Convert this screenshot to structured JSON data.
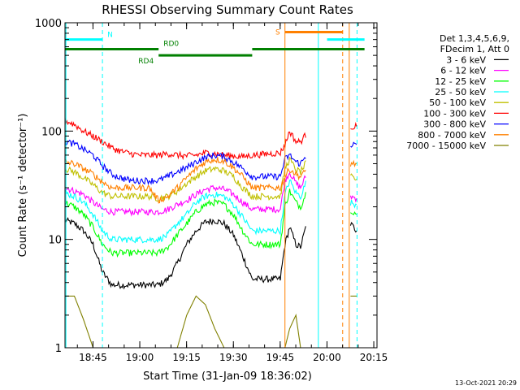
{
  "chart_data": {
    "type": "line",
    "title": "RHESSI Observing Summary Count Rates",
    "xlabel": "Start Time (31-Jan-09 18:36:02)",
    "ylabel": "Count Rate (s⁻¹ detector⁻¹)",
    "x_unit": "minutes after 18:36:02",
    "x_range": [
      0,
      100
    ],
    "ylim": [
      1,
      1000
    ],
    "y_scale": "log",
    "x_ticks": [
      "18:45",
      "19:00",
      "19:15",
      "19:30",
      "19:45",
      "20:00",
      "20:15"
    ],
    "y_ticks": [
      "1",
      "10",
      "100",
      "1000"
    ],
    "legend_header": [
      "Det 1,3,4,5,6,9,",
      "FDecim 1, Att 0"
    ],
    "legend_position": "right",
    "timestamp": "13-Oct-2021 20:29",
    "flags": [
      {
        "label": "N",
        "color": "#00ffff",
        "y": 700,
        "segments": [
          [
            0,
            12
          ],
          [
            84,
            96
          ]
        ]
      },
      {
        "label": "RD0",
        "color": "#008000",
        "y": 570,
        "segments": [
          [
            0,
            30
          ],
          [
            60,
            96
          ]
        ]
      },
      {
        "label": "RD4",
        "color": "#008000",
        "y": 500,
        "segments": [
          [
            30,
            60
          ]
        ]
      },
      {
        "label": "S",
        "color": "#ff8000",
        "y": 820,
        "segments": [
          [
            70.5,
            89
          ]
        ]
      }
    ],
    "vlines": [
      {
        "x": 0.3,
        "color": "#00ffff",
        "dash": false
      },
      {
        "x": 12,
        "color": "#00ffff",
        "dash": true
      },
      {
        "x": 70.5,
        "color": "#ff8000",
        "dash": false
      },
      {
        "x": 81.2,
        "color": "#00ffff",
        "dash": false
      },
      {
        "x": 89,
        "color": "#ff8000",
        "dash": true
      },
      {
        "x": 91.1,
        "color": "#ff8000",
        "dash": false
      },
      {
        "x": 93.6,
        "color": "#00ffff",
        "dash": true
      }
    ],
    "x": [
      0,
      3,
      6,
      9,
      12,
      15,
      18,
      21,
      24,
      27,
      30,
      33,
      36,
      39,
      42,
      45,
      48,
      51,
      54,
      57,
      60,
      63,
      66,
      69,
      70.5,
      72,
      74,
      75.5,
      77.5,
      91.5,
      93.5
    ],
    "series": [
      {
        "name": "3 - 6 keV",
        "color": "#000000",
        "values": [
          15,
          14,
          12,
          9,
          5,
          3.8,
          3.8,
          3.8,
          3.8,
          3.8,
          3.8,
          4.3,
          6,
          9,
          12,
          14.5,
          15,
          14,
          11,
          7,
          4.3,
          4.3,
          4.3,
          4.3,
          9,
          13,
          9,
          8.5,
          14,
          14,
          12
        ]
      },
      {
        "name": "6 - 12 keV",
        "color": "#ff00ff",
        "values": [
          30,
          28,
          26,
          22,
          19,
          18,
          18,
          18,
          18,
          18,
          18,
          19,
          21,
          23,
          26,
          29,
          30,
          29,
          26,
          22,
          19,
          19,
          19,
          19,
          35,
          42,
          33,
          30,
          40,
          25,
          24
        ]
      },
      {
        "name": "12 - 25 keV",
        "color": "#00ff00",
        "values": [
          22,
          20,
          17,
          13,
          9,
          7.5,
          7.5,
          7.5,
          7.5,
          7.5,
          7.5,
          8.5,
          11,
          14,
          18,
          21,
          22,
          21,
          17,
          12,
          9,
          9,
          9,
          9,
          20,
          28,
          22,
          20,
          28,
          19,
          17
        ]
      },
      {
        "name": "25 - 50 keV",
        "color": "#00ffff",
        "values": [
          27,
          25,
          22,
          17,
          12,
          10,
          10,
          10,
          10,
          10,
          10,
          11,
          14,
          17,
          22,
          25,
          26,
          25,
          21,
          16,
          12,
          12,
          12,
          12,
          26,
          35,
          27,
          25,
          35,
          22,
          21
        ]
      },
      {
        "name": "50 - 100 keV",
        "color": "#c0c000",
        "values": [
          45,
          42,
          37,
          32,
          27,
          25,
          25,
          25,
          25,
          25,
          24,
          25,
          28,
          33,
          38,
          43,
          45,
          43,
          38,
          30,
          25,
          25,
          25,
          25,
          45,
          55,
          44,
          42,
          52,
          38,
          36
        ]
      },
      {
        "name": "100 - 300 keV",
        "color": "#ff0000",
        "values": [
          125,
          115,
          100,
          90,
          80,
          70,
          65,
          62,
          60,
          60,
          60,
          62,
          60,
          59,
          60,
          63,
          62,
          60,
          59,
          58,
          60,
          61,
          62,
          63,
          75,
          100,
          80,
          80,
          95,
          110,
          110
        ]
      },
      {
        "name": "300 - 800 keV",
        "color": "#0000ff",
        "values": [
          80,
          76,
          68,
          60,
          48,
          40,
          37,
          35,
          35,
          35,
          35,
          38,
          42,
          46,
          52,
          57,
          60,
          58,
          52,
          45,
          38,
          38,
          38,
          38,
          55,
          60,
          52,
          50,
          60,
          75,
          75
        ]
      },
      {
        "name": "800 - 7000 keV",
        "color": "#ff8000",
        "values": [
          52,
          50,
          45,
          40,
          34,
          30,
          30,
          30,
          30,
          30,
          23,
          25,
          30,
          37,
          45,
          52,
          55,
          53,
          46,
          38,
          30,
          30,
          30,
          30,
          38,
          45,
          40,
          38,
          44,
          50,
          50
        ]
      },
      {
        "name": "7000 - 15000 keV",
        "color": "#808000",
        "values": [
          3,
          3,
          1.8,
          1,
          1,
          1,
          1,
          1,
          1,
          1,
          1,
          1,
          1,
          2,
          3,
          2.5,
          1.5,
          1,
          1,
          1,
          1,
          1,
          1,
          1,
          1,
          1.5,
          2,
          1,
          1,
          3,
          3
        ]
      }
    ]
  }
}
